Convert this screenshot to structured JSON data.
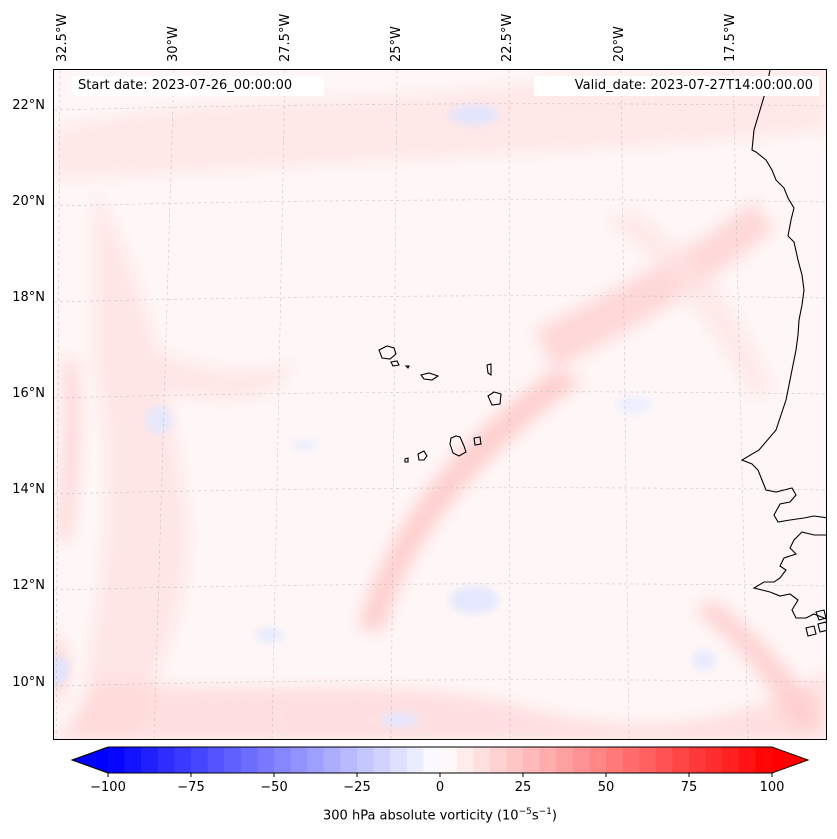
{
  "header": {
    "start_date": "Start date: 2023-07-26_00:00:00",
    "valid_date": "Valid_date: 2023-07-27T14:00:00.00"
  },
  "map": {
    "longitude_labels": [
      "32.5°W",
      "30°W",
      "27.5°W",
      "25°W",
      "22.5°W",
      "20°W",
      "17.5°W"
    ],
    "latitude_labels": [
      "22°N",
      "20°N",
      "18°N",
      "16°N",
      "14°N",
      "12°N",
      "10°N"
    ],
    "extent": {
      "lon_min": -32.7,
      "lon_max": -15.5,
      "lat_min": 8.9,
      "lat_max": 22.8
    },
    "features": [
      "Cabo Verde islands",
      "West African coastline"
    ]
  },
  "colorbar": {
    "label_main": "300 hPa absolute vorticity (10",
    "label_exp1": "−5",
    "label_mid": "s",
    "label_exp2": "−1",
    "label_end": ")",
    "ticks": [
      "−100",
      "−75",
      "−50",
      "−25",
      "0",
      "25",
      "50",
      "75",
      "100"
    ],
    "range": [
      -100,
      100
    ],
    "colormap": "bwr",
    "color_low": "#0000ff",
    "color_mid": "#ffffff",
    "color_high": "#ff0000"
  }
}
